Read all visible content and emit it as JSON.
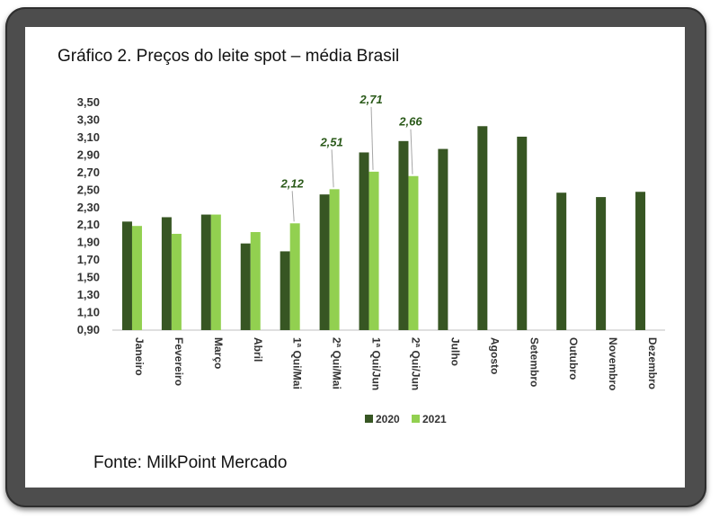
{
  "title": "Gráfico 2. Preços do leite spot – média Brasil",
  "source": "Fonte: MilkPoint Mercado",
  "colors": {
    "series2020": "#375623",
    "series2021": "#92d050",
    "label": "#2b5a1a"
  },
  "chart_data": {
    "type": "bar",
    "title": "Gráfico 2. Preços do leite spot – média Brasil",
    "xlabel": "",
    "ylabel": "",
    "ylim": [
      0.9,
      3.5
    ],
    "yticks": [
      "0,90",
      "1,10",
      "1,30",
      "1,50",
      "1,70",
      "1,90",
      "2,10",
      "2,30",
      "2,50",
      "2,70",
      "2,90",
      "3,10",
      "3,30",
      "3,50"
    ],
    "categories": [
      "Janeiro",
      "Fevereiro",
      "Março",
      "Abril",
      "1ª Qui/Mai",
      "2ª Qui/Mai",
      "1ª Qui/Jun",
      "2ª Qui/Jun",
      "Julho",
      "Agosto",
      "Setembro",
      "Outubro",
      "Novembro",
      "Dezembro"
    ],
    "series": [
      {
        "name": "2020",
        "values": [
          2.14,
          2.19,
          2.22,
          1.89,
          1.8,
          2.45,
          2.93,
          3.06,
          2.97,
          3.23,
          3.11,
          2.47,
          2.42,
          2.48
        ]
      },
      {
        "name": "2021",
        "values": [
          2.09,
          2.0,
          2.22,
          2.02,
          2.12,
          2.51,
          2.71,
          2.66,
          null,
          null,
          null,
          null,
          null,
          null
        ]
      }
    ],
    "data_labels": [
      {
        "category": "1ª Qui/Mai",
        "series": "2021",
        "text": "2,12"
      },
      {
        "category": "2ª Qui/Mai",
        "series": "2021",
        "text": "2,51"
      },
      {
        "category": "1ª Qui/Jun",
        "series": "2021",
        "text": "2,71"
      },
      {
        "category": "2ª Qui/Jun",
        "series": "2021",
        "text": "2,66"
      }
    ],
    "legend": {
      "position": "bottom",
      "entries": [
        "2020",
        "2021"
      ]
    },
    "grid": false
  }
}
